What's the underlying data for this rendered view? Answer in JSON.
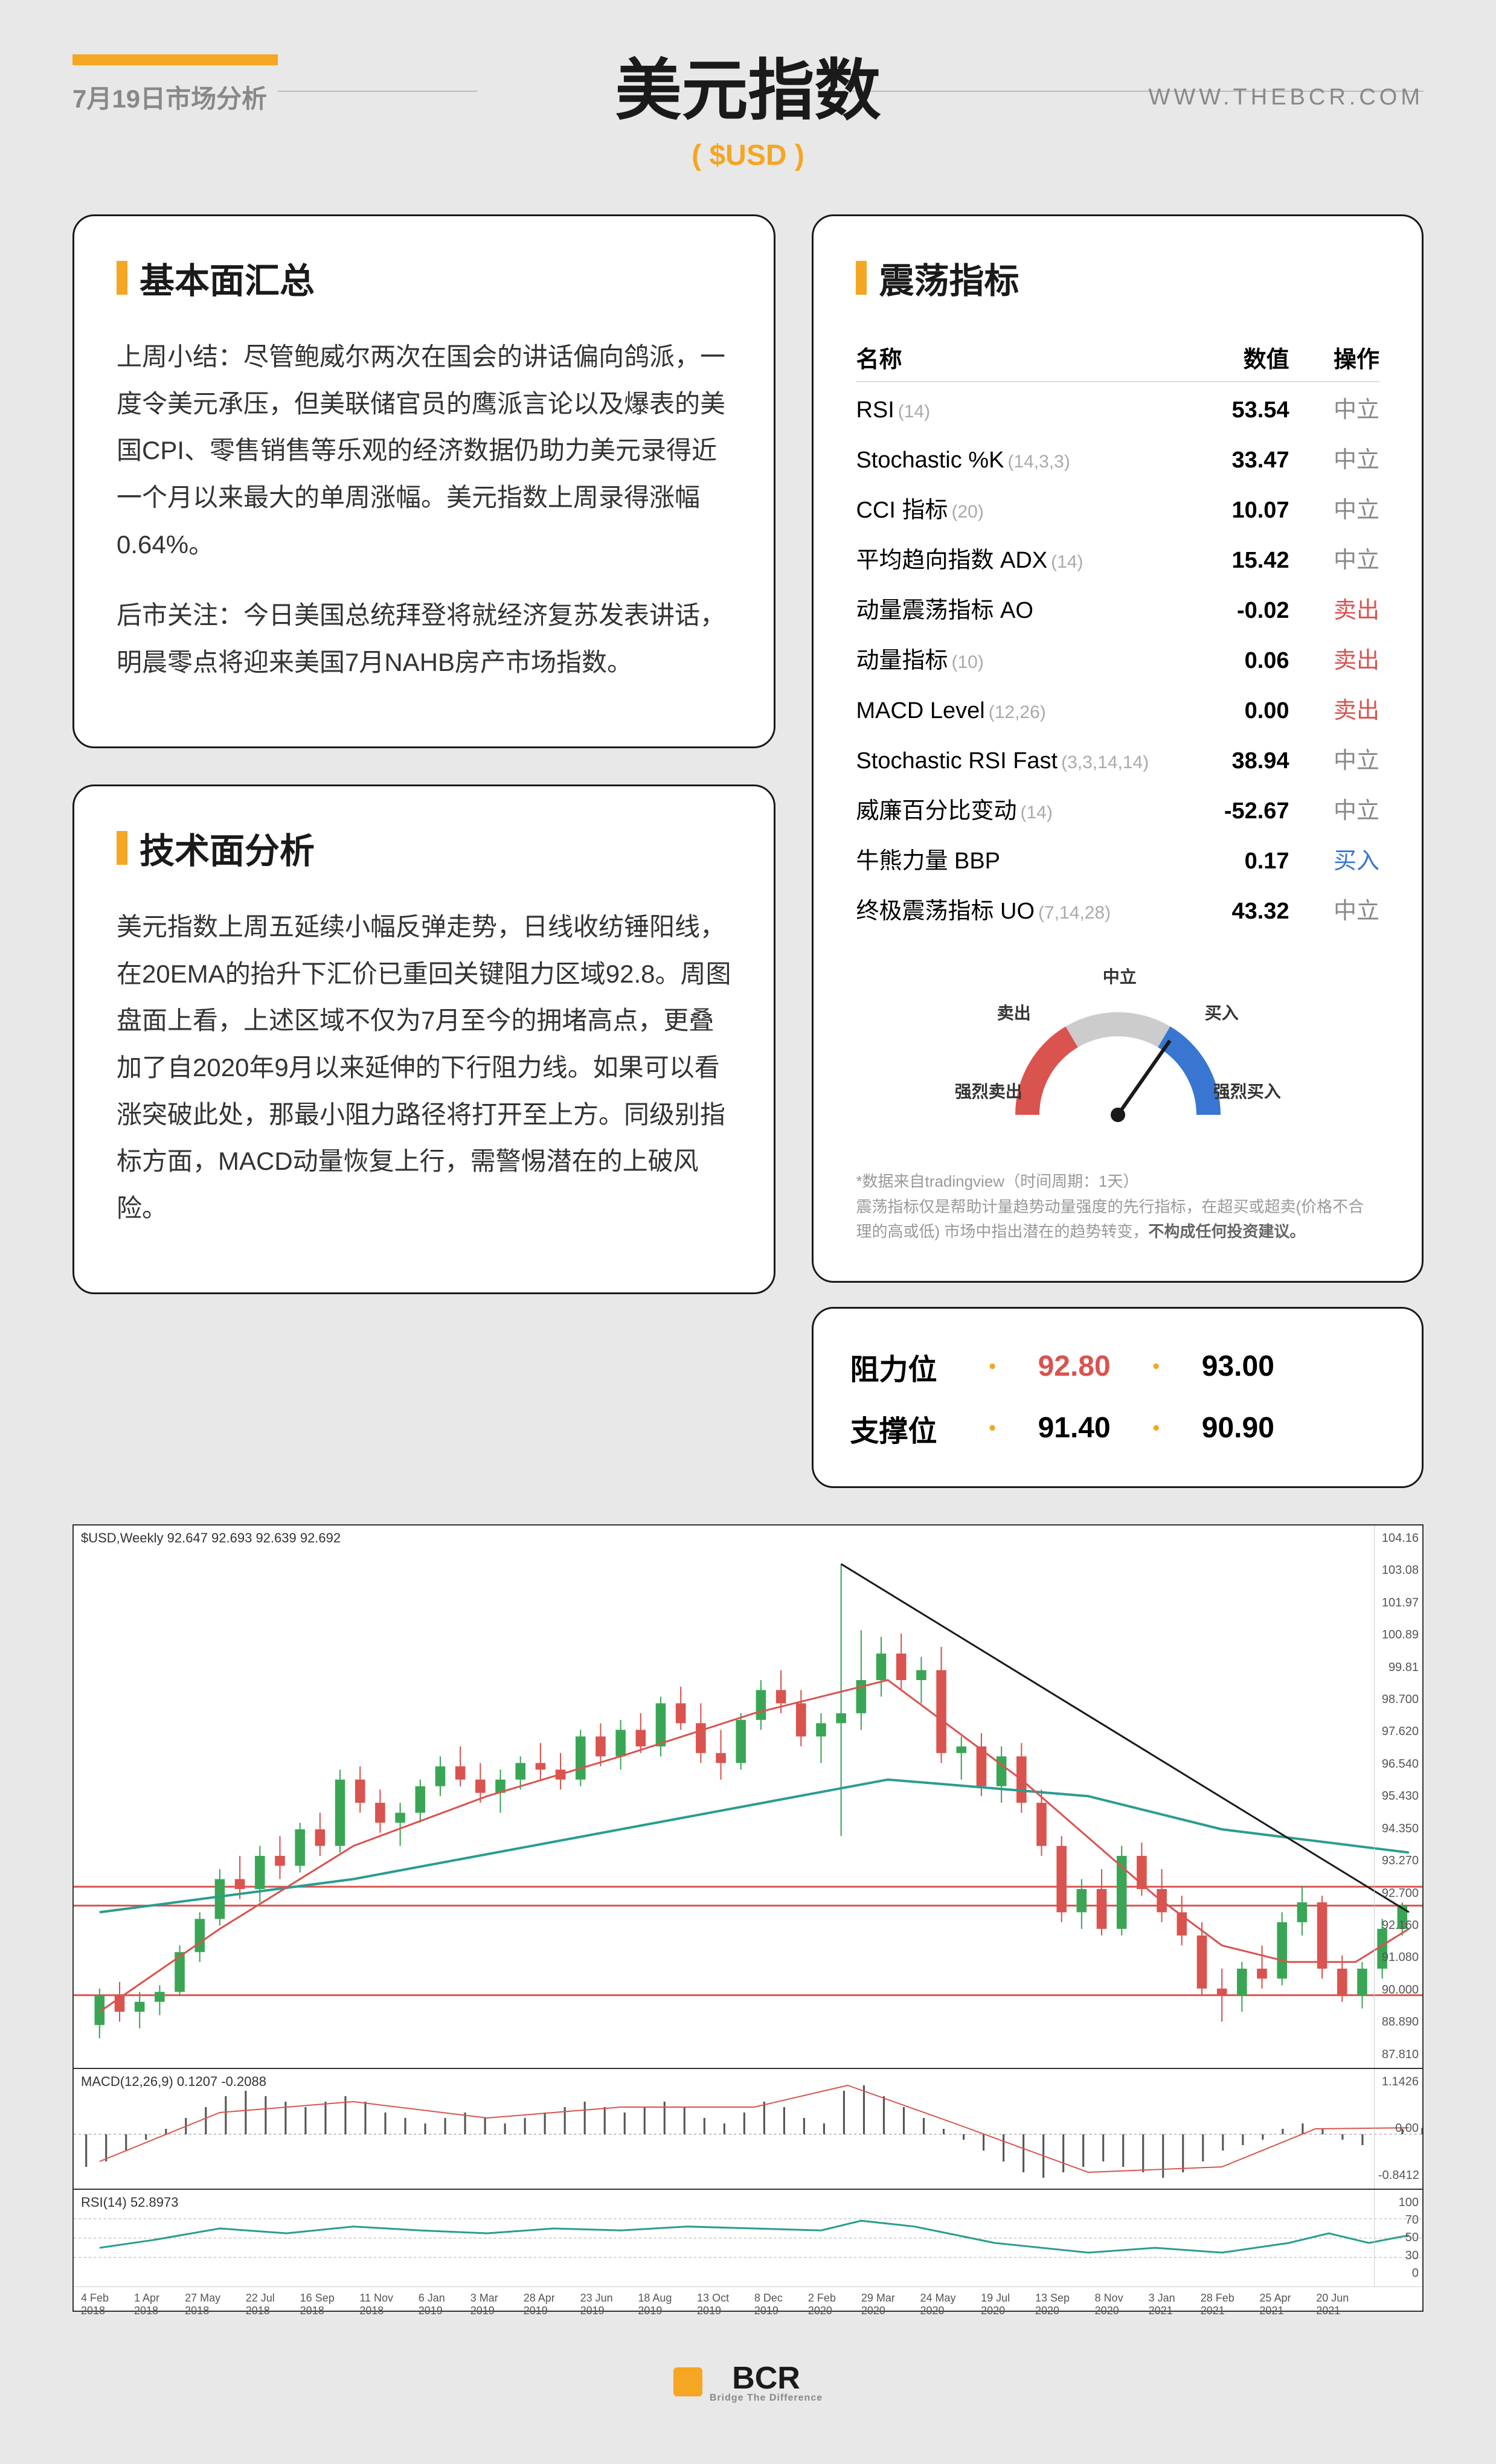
{
  "header": {
    "date": "7月19日市场分析",
    "title": "美元指数",
    "ticker": "( $USD )",
    "website": "WWW.THEBCR.COM"
  },
  "fundamentals": {
    "title": "基本面汇总",
    "p1": "上周小结：尽管鲍威尔两次在国会的讲话偏向鸽派，一度令美元承压，但美联储官员的鹰派言论以及爆表的美国CPI、零售销售等乐观的经济数据仍助力美元录得近一个月以来最大的单周涨幅。美元指数上周录得涨幅0.64%。",
    "p2": "后市关注：今日美国总统拜登将就经济复苏发表讲话，明晨零点将迎来美国7月NAHB房产市场指数。"
  },
  "technical": {
    "title": "技术面分析",
    "p1": "美元指数上周五延续小幅反弹走势，日线收纺锤阳线，在20EMA的抬升下汇价已重回关键阻力区域92.8。周图盘面上看，上述区域不仅为7月至今的拥堵高点，更叠加了自2020年9月以来延伸的下行阻力线。如果可以看涨突破此处，那最小阻力路径将打开至上方。同级别指标方面，MACD动量恢复上行，需警惕潜在的上破风险。"
  },
  "oscillators": {
    "title": "震荡指标",
    "headers": {
      "name": "名称",
      "value": "数值",
      "action": "操作"
    },
    "rows": [
      {
        "name": "RSI",
        "param": "(14)",
        "value": "53.54",
        "action": "中立",
        "cls": "act-neutral"
      },
      {
        "name": "Stochastic %K",
        "param": "(14,3,3)",
        "value": "33.47",
        "action": "中立",
        "cls": "act-neutral"
      },
      {
        "name": "CCI 指标",
        "param": "(20)",
        "value": "10.07",
        "action": "中立",
        "cls": "act-neutral"
      },
      {
        "name": "平均趋向指数 ADX",
        "param": "(14)",
        "value": "15.42",
        "action": "中立",
        "cls": "act-neutral"
      },
      {
        "name": "动量震荡指标 AO",
        "param": "",
        "value": "-0.02",
        "action": "卖出",
        "cls": "act-sell"
      },
      {
        "name": "动量指标",
        "param": "(10)",
        "value": "0.06",
        "action": "卖出",
        "cls": "act-sell"
      },
      {
        "name": "MACD Level",
        "param": "(12,26)",
        "value": "0.00",
        "action": "卖出",
        "cls": "act-sell"
      },
      {
        "name": "Stochastic RSI Fast",
        "param": "(3,3,14,14)",
        "value": "38.94",
        "action": "中立",
        "cls": "act-neutral"
      },
      {
        "name": "威廉百分比变动",
        "param": "(14)",
        "value": "-52.67",
        "action": "中立",
        "cls": "act-neutral"
      },
      {
        "name": "牛熊力量 BBP",
        "param": "",
        "value": "0.17",
        "action": "买入",
        "cls": "act-buy"
      },
      {
        "name": "终极震荡指标 UO",
        "param": "(7,14,28)",
        "value": "43.32",
        "action": "中立",
        "cls": "act-neutral"
      }
    ],
    "gauge": {
      "labels": {
        "strong_sell": "强烈卖出",
        "sell": "卖出",
        "neutral": "中立",
        "buy": "买入",
        "strong_buy": "强烈买入"
      },
      "needle_angle": 35,
      "colors": {
        "sell": "#d9534f",
        "neutral": "#cccccc",
        "buy": "#3876d1",
        "needle": "#1a1a1a"
      }
    },
    "disclaimer": "*数据来自tradingview（时间周期：1天）",
    "disclaimer2": "震荡指标仅是帮助计量趋势动量强度的先行指标，在超买或超卖(价格不合理的高或低) 市场中指出潜在的趋势转变，",
    "disclaimer_bold": "不构成任何投资建议。"
  },
  "levels": {
    "resistance_label": "阻力位",
    "support_label": "支撑位",
    "resistance": [
      "92.80",
      "93.00"
    ],
    "support": [
      "91.40",
      "90.90"
    ]
  },
  "chart": {
    "main_label": "$USD,Weekly  92.647 92.693 92.639 92.692",
    "macd_label": "MACD(12,26,9) 0.1207 -0.2088",
    "rsi_label": "RSI(14) 52.8973",
    "y_ticks": [
      "104.16",
      "103.08",
      "101.97",
      "100.89",
      "99.81",
      "98.700",
      "97.620",
      "96.540",
      "95.430",
      "94.350",
      "93.270",
      "92.700",
      "92.160",
      "91.080",
      "90.000",
      "88.890",
      "87.810"
    ],
    "macd_y": [
      "1.1426",
      "0.00",
      "-0.8412"
    ],
    "rsi_y": [
      "100",
      "70",
      "50",
      "30",
      "0"
    ],
    "x_ticks": [
      "4 Feb 2018",
      "1 Apr 2018",
      "27 May 2018",
      "22 Jul 2018",
      "16 Sep 2018",
      "11 Nov 2018",
      "6 Jan 2019",
      "3 Mar 2019",
      "28 Apr 2019",
      "23 Jun 2019",
      "18 Aug 2019",
      "13 Oct 2019",
      "8 Dec 2019",
      "2 Feb 2020",
      "29 Mar 2020",
      "24 May 2020",
      "19 Jul 2020",
      "13 Sep 2020",
      "8 Nov 2020",
      "3 Jan 2021",
      "28 Feb 2021",
      "25 Apr 2021",
      "20 Jun 2021"
    ],
    "colors": {
      "candle_up": "#3aa655",
      "candle_down": "#d9534f",
      "ema20": "#d9534f",
      "ema50": "#3876d1",
      "ema200": "#2a9d8f",
      "trendline": "#1a1a1a",
      "hline_red": "#d9534f",
      "macd_line": "#d9534f",
      "macd_signal": "#2a9d8f",
      "rsi_line": "#2a9d8f"
    },
    "candles": [
      {
        "x": 0.01,
        "o": 89.1,
        "h": 90.2,
        "l": 88.7,
        "c": 90.0
      },
      {
        "x": 0.025,
        "o": 90.0,
        "h": 90.4,
        "l": 89.2,
        "c": 89.5
      },
      {
        "x": 0.04,
        "o": 89.5,
        "h": 90.1,
        "l": 89.0,
        "c": 89.8
      },
      {
        "x": 0.055,
        "o": 89.8,
        "h": 90.3,
        "l": 89.4,
        "c": 90.1
      },
      {
        "x": 0.07,
        "o": 90.1,
        "h": 91.5,
        "l": 90.0,
        "c": 91.3
      },
      {
        "x": 0.085,
        "o": 91.3,
        "h": 92.5,
        "l": 91.0,
        "c": 92.3
      },
      {
        "x": 0.1,
        "o": 92.3,
        "h": 93.8,
        "l": 92.1,
        "c": 93.5
      },
      {
        "x": 0.115,
        "o": 93.5,
        "h": 94.2,
        "l": 92.9,
        "c": 93.2
      },
      {
        "x": 0.13,
        "o": 93.2,
        "h": 94.5,
        "l": 92.8,
        "c": 94.2
      },
      {
        "x": 0.145,
        "o": 94.2,
        "h": 94.8,
        "l": 93.5,
        "c": 93.9
      },
      {
        "x": 0.16,
        "o": 93.9,
        "h": 95.2,
        "l": 93.7,
        "c": 95.0
      },
      {
        "x": 0.175,
        "o": 95.0,
        "h": 95.5,
        "l": 94.2,
        "c": 94.5
      },
      {
        "x": 0.19,
        "o": 94.5,
        "h": 96.8,
        "l": 94.3,
        "c": 96.5
      },
      {
        "x": 0.205,
        "o": 96.5,
        "h": 96.9,
        "l": 95.5,
        "c": 95.8
      },
      {
        "x": 0.22,
        "o": 95.8,
        "h": 96.2,
        "l": 94.9,
        "c": 95.2
      },
      {
        "x": 0.235,
        "o": 95.2,
        "h": 95.8,
        "l": 94.5,
        "c": 95.5
      },
      {
        "x": 0.25,
        "o": 95.5,
        "h": 96.5,
        "l": 95.2,
        "c": 96.3
      },
      {
        "x": 0.265,
        "o": 96.3,
        "h": 97.2,
        "l": 96.0,
        "c": 96.9
      },
      {
        "x": 0.28,
        "o": 96.9,
        "h": 97.5,
        "l": 96.3,
        "c": 96.5
      },
      {
        "x": 0.295,
        "o": 96.5,
        "h": 97.0,
        "l": 95.8,
        "c": 96.1
      },
      {
        "x": 0.31,
        "o": 96.1,
        "h": 96.8,
        "l": 95.5,
        "c": 96.5
      },
      {
        "x": 0.325,
        "o": 96.5,
        "h": 97.2,
        "l": 96.2,
        "c": 97.0
      },
      {
        "x": 0.34,
        "o": 97.0,
        "h": 97.6,
        "l": 96.5,
        "c": 96.8
      },
      {
        "x": 0.355,
        "o": 96.8,
        "h": 97.3,
        "l": 96.2,
        "c": 96.5
      },
      {
        "x": 0.37,
        "o": 96.5,
        "h": 98.0,
        "l": 96.3,
        "c": 97.8
      },
      {
        "x": 0.385,
        "o": 97.8,
        "h": 98.2,
        "l": 96.9,
        "c": 97.2
      },
      {
        "x": 0.4,
        "o": 97.2,
        "h": 98.3,
        "l": 96.8,
        "c": 98.0
      },
      {
        "x": 0.415,
        "o": 98.0,
        "h": 98.5,
        "l": 97.3,
        "c": 97.5
      },
      {
        "x": 0.43,
        "o": 97.5,
        "h": 99.0,
        "l": 97.2,
        "c": 98.8
      },
      {
        "x": 0.445,
        "o": 98.8,
        "h": 99.3,
        "l": 98.0,
        "c": 98.2
      },
      {
        "x": 0.46,
        "o": 98.2,
        "h": 98.8,
        "l": 97.0,
        "c": 97.3
      },
      {
        "x": 0.475,
        "o": 97.3,
        "h": 98.0,
        "l": 96.5,
        "c": 97.0
      },
      {
        "x": 0.49,
        "o": 97.0,
        "h": 98.5,
        "l": 96.8,
        "c": 98.3
      },
      {
        "x": 0.505,
        "o": 98.3,
        "h": 99.5,
        "l": 98.0,
        "c": 99.2
      },
      {
        "x": 0.52,
        "o": 99.2,
        "h": 99.8,
        "l": 98.5,
        "c": 98.8
      },
      {
        "x": 0.535,
        "o": 98.8,
        "h": 99.2,
        "l": 97.5,
        "c": 97.8
      },
      {
        "x": 0.55,
        "o": 97.8,
        "h": 98.5,
        "l": 97.0,
        "c": 98.2
      },
      {
        "x": 0.565,
        "o": 98.2,
        "h": 103.0,
        "l": 94.8,
        "c": 98.5
      },
      {
        "x": 0.58,
        "o": 98.5,
        "h": 101.0,
        "l": 98.0,
        "c": 99.5
      },
      {
        "x": 0.595,
        "o": 99.5,
        "h": 100.8,
        "l": 99.0,
        "c": 100.3
      },
      {
        "x": 0.61,
        "o": 100.3,
        "h": 100.9,
        "l": 99.2,
        "c": 99.5
      },
      {
        "x": 0.625,
        "o": 99.5,
        "h": 100.2,
        "l": 98.8,
        "c": 99.8
      },
      {
        "x": 0.64,
        "o": 99.8,
        "h": 100.5,
        "l": 97.0,
        "c": 97.3
      },
      {
        "x": 0.655,
        "o": 97.3,
        "h": 97.8,
        "l": 96.5,
        "c": 97.5
      },
      {
        "x": 0.67,
        "o": 97.5,
        "h": 97.9,
        "l": 96.0,
        "c": 96.3
      },
      {
        "x": 0.685,
        "o": 96.3,
        "h": 97.5,
        "l": 95.8,
        "c": 97.2
      },
      {
        "x": 0.7,
        "o": 97.2,
        "h": 97.6,
        "l": 95.5,
        "c": 95.8
      },
      {
        "x": 0.715,
        "o": 95.8,
        "h": 96.2,
        "l": 94.2,
        "c": 94.5
      },
      {
        "x": 0.73,
        "o": 94.5,
        "h": 94.8,
        "l": 92.2,
        "c": 92.5
      },
      {
        "x": 0.745,
        "o": 92.5,
        "h": 93.5,
        "l": 92.0,
        "c": 93.2
      },
      {
        "x": 0.76,
        "o": 93.2,
        "h": 93.8,
        "l": 91.8,
        "c": 92.0
      },
      {
        "x": 0.775,
        "o": 92.0,
        "h": 94.5,
        "l": 91.8,
        "c": 94.2
      },
      {
        "x": 0.79,
        "o": 94.2,
        "h": 94.6,
        "l": 93.0,
        "c": 93.2
      },
      {
        "x": 0.805,
        "o": 93.2,
        "h": 93.8,
        "l": 92.2,
        "c": 92.5
      },
      {
        "x": 0.82,
        "o": 92.5,
        "h": 93.0,
        "l": 91.5,
        "c": 91.8
      },
      {
        "x": 0.835,
        "o": 91.8,
        "h": 92.2,
        "l": 90.0,
        "c": 90.2
      },
      {
        "x": 0.85,
        "o": 90.2,
        "h": 90.8,
        "l": 89.2,
        "c": 90.0
      },
      {
        "x": 0.865,
        "o": 90.0,
        "h": 91.0,
        "l": 89.5,
        "c": 90.8
      },
      {
        "x": 0.88,
        "o": 90.8,
        "h": 91.5,
        "l": 90.2,
        "c": 90.5
      },
      {
        "x": 0.895,
        "o": 90.5,
        "h": 92.5,
        "l": 90.3,
        "c": 92.2
      },
      {
        "x": 0.91,
        "o": 92.2,
        "h": 93.3,
        "l": 91.8,
        "c": 92.8
      },
      {
        "x": 0.925,
        "o": 92.8,
        "h": 93.0,
        "l": 90.5,
        "c": 90.8
      },
      {
        "x": 0.94,
        "o": 90.8,
        "h": 91.2,
        "l": 89.8,
        "c": 90.0
      },
      {
        "x": 0.955,
        "o": 90.0,
        "h": 91.0,
        "l": 89.6,
        "c": 90.8
      },
      {
        "x": 0.97,
        "o": 90.8,
        "h": 92.3,
        "l": 90.5,
        "c": 92.0
      },
      {
        "x": 0.985,
        "o": 92.0,
        "h": 92.8,
        "l": 91.8,
        "c": 92.7
      }
    ],
    "ema20_path": [
      [
        0.01,
        89.5
      ],
      [
        0.1,
        92.0
      ],
      [
        0.2,
        94.5
      ],
      [
        0.3,
        96.0
      ],
      [
        0.4,
        97.2
      ],
      [
        0.5,
        98.5
      ],
      [
        0.6,
        99.5
      ],
      [
        0.7,
        96.5
      ],
      [
        0.8,
        93.0
      ],
      [
        0.85,
        91.5
      ],
      [
        0.9,
        91.0
      ],
      [
        0.95,
        91.0
      ],
      [
        0.99,
        92.0
      ]
    ],
    "ema200_path": [
      [
        0.01,
        92.5
      ],
      [
        0.2,
        93.5
      ],
      [
        0.4,
        95.0
      ],
      [
        0.6,
        96.5
      ],
      [
        0.75,
        96.0
      ],
      [
        0.85,
        95.0
      ],
      [
        0.99,
        94.3
      ]
    ],
    "trendline": [
      [
        0.565,
        103.0
      ],
      [
        0.99,
        92.5
      ]
    ],
    "hlines": [
      93.27,
      92.7,
      90.0
    ],
    "macd_hist": [
      -0.6,
      -0.5,
      -0.3,
      -0.1,
      0.1,
      0.3,
      0.5,
      0.7,
      0.8,
      0.7,
      0.6,
      0.5,
      0.6,
      0.7,
      0.6,
      0.4,
      0.3,
      0.2,
      0.3,
      0.4,
      0.3,
      0.2,
      0.3,
      0.4,
      0.5,
      0.6,
      0.5,
      0.4,
      0.5,
      0.6,
      0.5,
      0.3,
      0.2,
      0.4,
      0.6,
      0.5,
      0.3,
      0.2,
      0.8,
      0.9,
      0.7,
      0.5,
      0.3,
      0.1,
      -0.1,
      -0.3,
      -0.5,
      -0.7,
      -0.8,
      -0.7,
      -0.6,
      -0.5,
      -0.6,
      -0.7,
      -0.8,
      -0.7,
      -0.5,
      -0.3,
      -0.2,
      -0.1,
      0.1,
      0.2,
      0.1,
      -0.1,
      -0.2,
      0.0,
      0.1,
      0.12
    ],
    "macd_line_path": [
      [
        0.01,
        -0.5
      ],
      [
        0.1,
        0.4
      ],
      [
        0.2,
        0.6
      ],
      [
        0.3,
        0.3
      ],
      [
        0.4,
        0.5
      ],
      [
        0.5,
        0.5
      ],
      [
        0.57,
        0.9
      ],
      [
        0.65,
        0.2
      ],
      [
        0.75,
        -0.7
      ],
      [
        0.85,
        -0.6
      ],
      [
        0.92,
        0.1
      ],
      [
        0.99,
        0.12
      ]
    ],
    "rsi_path": [
      [
        0.01,
        40
      ],
      [
        0.05,
        48
      ],
      [
        0.1,
        60
      ],
      [
        0.15,
        55
      ],
      [
        0.2,
        62
      ],
      [
        0.25,
        58
      ],
      [
        0.3,
        55
      ],
      [
        0.35,
        60
      ],
      [
        0.4,
        58
      ],
      [
        0.45,
        62
      ],
      [
        0.5,
        60
      ],
      [
        0.55,
        58
      ],
      [
        0.58,
        68
      ],
      [
        0.62,
        62
      ],
      [
        0.68,
        45
      ],
      [
        0.75,
        35
      ],
      [
        0.8,
        40
      ],
      [
        0.85,
        35
      ],
      [
        0.9,
        45
      ],
      [
        0.93,
        55
      ],
      [
        0.96,
        45
      ],
      [
        0.99,
        53
      ]
    ]
  },
  "footer": {
    "logo_text": "BCR",
    "logo_sub": "Bridge The Difference"
  }
}
